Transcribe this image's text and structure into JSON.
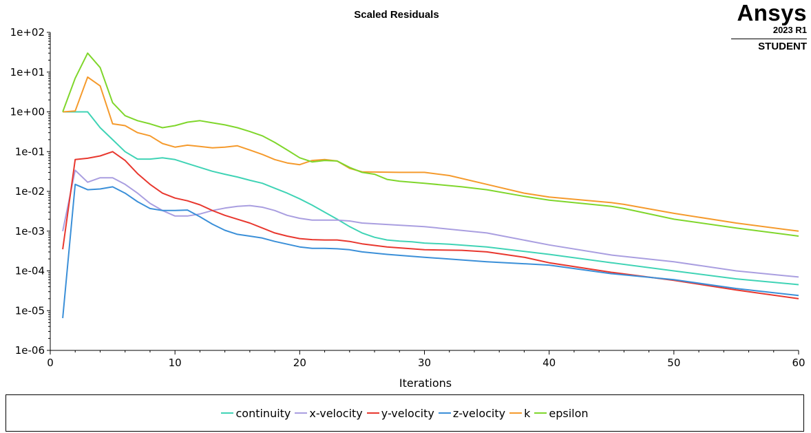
{
  "chart_data": {
    "type": "line",
    "title": "Scaled Residuals",
    "xlabel": "Iterations",
    "ylabel": "",
    "xlim": [
      0,
      60
    ],
    "ylim": [
      1e-06,
      100
    ],
    "yscale": "log",
    "x_ticks": [
      "0",
      "10",
      "20",
      "30",
      "40",
      "50",
      "60"
    ],
    "y_ticks": [
      "1e-06",
      "1e-05",
      "1e-04",
      "1e-03",
      "1e-02",
      "1e-01",
      "1e+00",
      "1e+01",
      "1e+02"
    ],
    "grid": false,
    "legend_position": "bottom",
    "series": [
      {
        "name": "continuity",
        "color": "#3fd3b5",
        "x": [
          1,
          2,
          3,
          4,
          5,
          6,
          7,
          8,
          9,
          10,
          11,
          12,
          13,
          14,
          15,
          16,
          17,
          18,
          19,
          20,
          21,
          22,
          23,
          24,
          25,
          26,
          27,
          28,
          29,
          30,
          32,
          35,
          40,
          45,
          50,
          55,
          60
        ],
        "y": [
          1.0,
          1.0,
          1.0,
          0.4,
          0.2,
          0.1,
          0.065,
          0.065,
          0.07,
          0.063,
          0.05,
          0.04,
          0.032,
          0.027,
          0.023,
          0.019,
          0.016,
          0.012,
          0.009,
          0.0065,
          0.0045,
          0.003,
          0.002,
          0.0013,
          0.0009,
          0.0007,
          0.0006,
          0.00056,
          0.00054,
          0.0005,
          0.00047,
          0.0004,
          0.00026,
          0.00016,
          0.0001,
          6.3e-05,
          4.5e-05
        ]
      },
      {
        "name": "x-velocity",
        "color": "#a99ee0",
        "x": [
          1,
          2,
          3,
          4,
          5,
          6,
          7,
          8,
          9,
          10,
          11,
          12,
          13,
          14,
          15,
          16,
          17,
          18,
          19,
          20,
          21,
          22,
          23,
          24,
          25,
          30,
          35,
          40,
          45,
          50,
          55,
          60
        ],
        "y": [
          0.001,
          0.034,
          0.017,
          0.022,
          0.022,
          0.015,
          0.009,
          0.005,
          0.0033,
          0.0024,
          0.0024,
          0.0027,
          0.0033,
          0.0038,
          0.0042,
          0.0044,
          0.004,
          0.0033,
          0.0025,
          0.0021,
          0.0019,
          0.0019,
          0.0019,
          0.0018,
          0.0016,
          0.0013,
          0.0009,
          0.00045,
          0.00025,
          0.00017,
          0.0001,
          7e-05
        ]
      },
      {
        "name": "y-velocity",
        "color": "#e8372e",
        "x": [
          1,
          2,
          3,
          4,
          5,
          6,
          7,
          8,
          9,
          10,
          11,
          12,
          13,
          14,
          15,
          16,
          17,
          18,
          19,
          20,
          21,
          22,
          23,
          24,
          25,
          27,
          30,
          33,
          35,
          38,
          40,
          45,
          50,
          55,
          60
        ],
        "y": [
          0.00035,
          0.063,
          0.068,
          0.078,
          0.1,
          0.06,
          0.028,
          0.015,
          0.009,
          0.0068,
          0.0058,
          0.0046,
          0.0033,
          0.0025,
          0.002,
          0.0016,
          0.0012,
          0.0009,
          0.00075,
          0.00065,
          0.00061,
          0.0006,
          0.0006,
          0.00055,
          0.00048,
          0.0004,
          0.00034,
          0.00033,
          0.0003,
          0.00022,
          0.00016,
          9.2e-05,
          5.8e-05,
          3.3e-05,
          2e-05
        ]
      },
      {
        "name": "z-velocity",
        "color": "#3a8fd8",
        "x": [
          1,
          2,
          3,
          4,
          5,
          6,
          7,
          8,
          9,
          10,
          11,
          12,
          13,
          14,
          15,
          16,
          17,
          18,
          19,
          20,
          21,
          22,
          23,
          24,
          25,
          27,
          30,
          35,
          40,
          45,
          50,
          55,
          60
        ],
        "y": [
          6.5e-06,
          0.015,
          0.011,
          0.0115,
          0.013,
          0.009,
          0.0055,
          0.0037,
          0.0033,
          0.0033,
          0.0034,
          0.0023,
          0.0015,
          0.00105,
          0.00083,
          0.00075,
          0.00067,
          0.00055,
          0.00047,
          0.0004,
          0.00037,
          0.00037,
          0.00036,
          0.00034,
          0.0003,
          0.00026,
          0.00022,
          0.00017,
          0.00014,
          8.5e-05,
          6e-05,
          3.6e-05,
          2.4e-05
        ]
      },
      {
        "name": "k",
        "color": "#f59a2c",
        "x": [
          1,
          2,
          3,
          4,
          5,
          6,
          7,
          8,
          9,
          10,
          11,
          12,
          13,
          14,
          15,
          16,
          17,
          18,
          19,
          20,
          21,
          22,
          23,
          24,
          25,
          28,
          30,
          32,
          35,
          38,
          40,
          45,
          46,
          50,
          55,
          60
        ],
        "y": [
          1.0,
          1.05,
          7.5,
          4.5,
          0.5,
          0.45,
          0.3,
          0.25,
          0.16,
          0.13,
          0.145,
          0.135,
          0.125,
          0.13,
          0.14,
          0.11,
          0.085,
          0.063,
          0.052,
          0.047,
          0.06,
          0.063,
          0.058,
          0.038,
          0.031,
          0.03,
          0.03,
          0.025,
          0.015,
          0.009,
          0.0072,
          0.0052,
          0.0047,
          0.0028,
          0.0016,
          0.001
        ]
      },
      {
        "name": "epsilon",
        "color": "#7fd62b",
        "x": [
          1,
          2,
          3,
          4,
          5,
          6,
          7,
          8,
          9,
          10,
          11,
          12,
          13,
          14,
          15,
          16,
          17,
          18,
          19,
          20,
          21,
          22,
          23,
          24,
          25,
          26,
          27,
          28,
          30,
          33,
          35,
          38,
          40,
          45,
          46,
          50,
          55,
          60
        ],
        "y": [
          1.0,
          7.0,
          30.0,
          13.0,
          1.7,
          0.8,
          0.6,
          0.5,
          0.4,
          0.45,
          0.55,
          0.6,
          0.53,
          0.47,
          0.4,
          0.32,
          0.25,
          0.17,
          0.11,
          0.07,
          0.055,
          0.06,
          0.058,
          0.04,
          0.03,
          0.027,
          0.02,
          0.018,
          0.016,
          0.013,
          0.011,
          0.0075,
          0.006,
          0.0042,
          0.0037,
          0.002,
          0.0012,
          0.00075
        ]
      }
    ]
  },
  "logo": {
    "brand": "Ansys",
    "version": "2023 R1",
    "edition": "STUDENT"
  }
}
